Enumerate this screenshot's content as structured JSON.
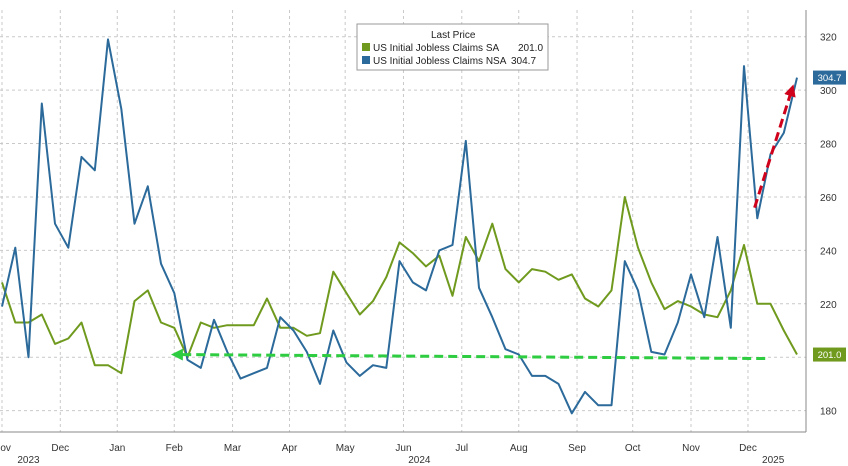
{
  "chart_data": {
    "type": "line",
    "legend_title": "Last Price",
    "legend_position": "top-center",
    "grid": true,
    "yticks": [
      180,
      200,
      220,
      240,
      260,
      280,
      300,
      320
    ],
    "ylim": [
      172,
      330
    ],
    "y_axis_side": "right",
    "month_labels": [
      "Nov",
      "Dec",
      "Jan",
      "Feb",
      "Mar",
      "Apr",
      "May",
      "Jun",
      "Jul",
      "Aug",
      "Sep",
      "Oct",
      "Nov",
      "Dec"
    ],
    "month_positions": [
      0,
      4.4,
      8.7,
      13.0,
      17.4,
      21.7,
      25.9,
      30.3,
      34.7,
      39.0,
      43.4,
      47.6,
      52.0,
      56.3
    ],
    "year_labels": [
      {
        "text": "2023",
        "pos": 2
      },
      {
        "text": "2024",
        "pos": 31.5
      },
      {
        "text": "2025",
        "pos": 58.2
      }
    ],
    "series": [
      {
        "name": "US Initial Jobless Claims SA",
        "color": "#6f9a1e",
        "last_value": 201.0,
        "last_label": "201.0",
        "values": [
          228,
          213,
          213,
          216,
          205,
          207,
          213,
          197,
          197,
          194,
          221,
          225,
          213,
          211,
          200,
          213,
          211,
          212,
          212,
          212,
          222,
          211,
          211,
          208,
          209,
          232,
          224,
          216,
          221,
          230,
          243,
          239,
          234,
          238,
          223,
          245,
          236,
          250,
          233,
          228,
          233,
          232,
          229,
          231,
          222,
          219,
          225,
          260,
          241,
          228,
          218,
          221,
          219,
          216,
          215,
          225,
          242,
          220,
          220,
          210,
          201
        ]
      },
      {
        "name": "US Initial Jobless Claims NSA",
        "color": "#2b6a9a",
        "last_value": 304.7,
        "last_label": "304.7",
        "values": [
          219,
          241,
          200,
          295,
          250,
          241,
          275,
          270,
          319,
          293,
          250,
          264,
          235,
          224,
          199,
          196,
          214,
          202,
          192,
          194,
          196,
          215,
          210,
          202,
          190,
          210,
          198,
          193,
          197,
          196,
          236,
          228,
          225,
          240,
          242,
          281,
          226,
          215,
          203,
          201,
          193,
          193,
          190,
          179,
          187,
          182,
          182,
          236,
          225,
          202,
          201,
          213,
          231,
          215,
          245,
          211,
          309,
          252,
          276,
          284,
          304.7
        ]
      }
    ],
    "annotations": [
      {
        "type": "arrow",
        "color": "#2ecc40",
        "from": [
          57.6,
          199.5
        ],
        "to": [
          13.2,
          201
        ]
      },
      {
        "type": "arrow",
        "color": "#d0021b",
        "from": [
          56.8,
          256
        ],
        "to": [
          59.6,
          300
        ]
      }
    ]
  }
}
